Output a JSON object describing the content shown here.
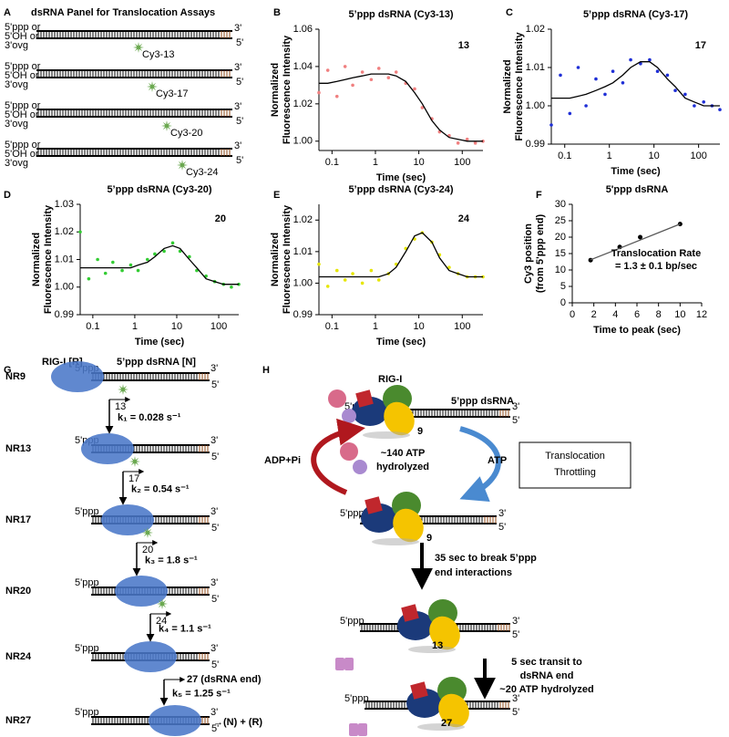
{
  "panel_labels": [
    "A",
    "B",
    "C",
    "D",
    "E",
    "F",
    "G",
    "H"
  ],
  "chart_data": [
    {
      "type": "scatter",
      "title": "5’ppp dsRNA (Cy3-13)",
      "annotation": [
        "13"
      ],
      "xlabel": "Time (sec)",
      "ylabel": [
        "Normalized",
        "Fluorescence Intensity"
      ],
      "xscale": "log",
      "xlim": [
        0.05,
        300
      ],
      "xticks": [
        0.1,
        1,
        10,
        100
      ],
      "ylim": [
        0.995,
        1.06
      ],
      "yticks": [
        {
          "value": 1,
          "label": "1.00"
        },
        {
          "value": 1.02,
          "label": "1.02"
        },
        {
          "value": 1.04,
          "label": "1.04"
        },
        {
          "value": 1.06,
          "label": "1.06"
        }
      ],
      "x": [
        0.05,
        0.08,
        0.13,
        0.2,
        0.3,
        0.5,
        0.8,
        1.2,
        2,
        3,
        5,
        8,
        12,
        20,
        30,
        50,
        80,
        130,
        200,
        300
      ],
      "series": [
        {
          "mode": "markers",
          "color": "#f08080",
          "values": [
            1.026,
            1.038,
            1.024,
            1.04,
            1.03,
            1.037,
            1.033,
            1.039,
            1.034,
            1.037,
            1.031,
            1.028,
            1.018,
            1.012,
            1.005,
            1.003,
            0.999,
            1.001,
            0.999,
            1.0
          ]
        },
        {
          "mode": "line",
          "color": "#000000",
          "values": [
            1.031,
            1.031,
            1.032,
            1.033,
            1.034,
            1.035,
            1.036,
            1.036,
            1.036,
            1.035,
            1.032,
            1.026,
            1.02,
            1.011,
            1.006,
            1.002,
            1.001,
            1.0,
            1.0,
            1.0
          ]
        }
      ]
    },
    {
      "type": "scatter",
      "title": "5’ppp dsRNA (Cy3-17)",
      "annotation": [
        "17"
      ],
      "xlabel": "Time (sec)",
      "ylabel": [
        "Normalized",
        "Fluorescence Intensity"
      ],
      "xscale": "log",
      "xlim": [
        0.05,
        300
      ],
      "xticks": [
        0.1,
        1,
        10,
        100
      ],
      "ylim": [
        0.99,
        1.02
      ],
      "yticks": [
        0.99,
        {
          "value": 1,
          "label": "1.00"
        },
        1.01,
        1.02
      ],
      "x": [
        0.05,
        0.08,
        0.13,
        0.2,
        0.3,
        0.5,
        0.8,
        1.2,
        2,
        3,
        5,
        8,
        12,
        20,
        30,
        50,
        80,
        130,
        200,
        300
      ],
      "series": [
        {
          "mode": "markers",
          "color": "#1f2fd6",
          "values": [
            0.995,
            1.008,
            0.998,
            1.01,
            1.0,
            1.007,
            1.003,
            1.009,
            1.006,
            1.012,
            1.011,
            1.012,
            1.009,
            1.008,
            1.004,
            1.003,
            1.0,
            1.001,
            1.0,
            0.999
          ]
        },
        {
          "mode": "line",
          "color": "#000000",
          "values": [
            1.002,
            1.002,
            1.002,
            1.0025,
            1.003,
            1.004,
            1.005,
            1.006,
            1.008,
            1.01,
            1.0115,
            1.0115,
            1.01,
            1.007,
            1.005,
            1.002,
            1.001,
            1.0,
            1.0,
            1.0
          ]
        }
      ]
    },
    {
      "type": "scatter",
      "title": "5’ppp dsRNA (Cy3-20)",
      "annotation": [
        "20"
      ],
      "xlabel": "Time (sec)",
      "ylabel": [
        "Normalized",
        "Fluorescence Intensity"
      ],
      "xscale": "log",
      "xlim": [
        0.05,
        300
      ],
      "xticks": [
        0.1,
        1,
        10,
        100
      ],
      "ylim": [
        0.99,
        1.03
      ],
      "yticks": [
        0.99,
        {
          "value": 1,
          "label": "1.00"
        },
        1.01,
        1.02,
        1.03
      ],
      "x": [
        0.05,
        0.08,
        0.13,
        0.2,
        0.3,
        0.5,
        0.8,
        1.2,
        2,
        3,
        5,
        8,
        12,
        20,
        30,
        50,
        80,
        130,
        200,
        300
      ],
      "series": [
        {
          "mode": "markers",
          "color": "#33cc33",
          "values": [
            1.02,
            1.003,
            1.01,
            1.005,
            1.009,
            1.006,
            1.008,
            1.006,
            1.01,
            1.012,
            1.013,
            1.016,
            1.013,
            1.011,
            1.006,
            1.004,
            1.002,
            1.001,
            1.0,
            1.001
          ]
        },
        {
          "mode": "line",
          "color": "#000000",
          "values": [
            1.007,
            1.007,
            1.007,
            1.007,
            1.007,
            1.007,
            1.007,
            1.008,
            1.009,
            1.011,
            1.014,
            1.015,
            1.014,
            1.01,
            1.007,
            1.003,
            1.002,
            1.001,
            1.001,
            1.001
          ]
        }
      ]
    },
    {
      "type": "scatter",
      "title": "5’ppp dsRNA (Cy3-24)",
      "annotation": [
        "24"
      ],
      "xlabel": "Time (sec)",
      "ylabel": [
        "Normalized",
        "Fluorescence Intensity"
      ],
      "xscale": "log",
      "xlim": [
        0.05,
        300
      ],
      "xticks": [
        0.1,
        1,
        10,
        100
      ],
      "ylim": [
        0.99,
        1.025
      ],
      "yticks": [
        0.99,
        {
          "value": 1,
          "label": "1.00"
        },
        1.01,
        1.02
      ],
      "x": [
        0.05,
        0.08,
        0.13,
        0.2,
        0.3,
        0.5,
        0.8,
        1.2,
        2,
        3,
        5,
        8,
        12,
        20,
        30,
        50,
        80,
        130,
        200,
        300
      ],
      "series": [
        {
          "mode": "markers",
          "color": "#e6e600",
          "values": [
            1.006,
            0.999,
            1.004,
            1.001,
            1.003,
            1.0,
            1.004,
            1.001,
            1.003,
            1.006,
            1.011,
            1.014,
            1.016,
            1.013,
            1.009,
            1.005,
            1.003,
            1.002,
            1.002,
            1.002
          ]
        },
        {
          "mode": "line",
          "color": "#000000",
          "values": [
            1.002,
            1.002,
            1.002,
            1.002,
            1.002,
            1.002,
            1.002,
            1.002,
            1.003,
            1.005,
            1.01,
            1.015,
            1.016,
            1.013,
            1.008,
            1.004,
            1.003,
            1.002,
            1.002,
            1.002
          ]
        }
      ]
    },
    {
      "type": "scatter",
      "title": "5'ppp dsRNA",
      "annotation": [
        "Translocation Rate",
        "= 1.3 ± 0.1 bp/sec"
      ],
      "xlabel": "Time to peak (sec)",
      "ylabel": [
        "Cy3 position",
        "(from 5'ppp end)"
      ],
      "xscale": "linear",
      "xlim": [
        0,
        12
      ],
      "xticks": [
        0,
        2,
        4,
        6,
        8,
        10,
        12
      ],
      "ylim": [
        0,
        30
      ],
      "yticks": [
        0,
        5,
        10,
        15,
        20,
        25,
        30
      ],
      "x": [
        1.7,
        4.4,
        6.3,
        10
      ],
      "series": [
        {
          "mode": "markers",
          "color": "#000000",
          "values": [
            13,
            17,
            20,
            24
          ]
        },
        {
          "mode": "line",
          "color": "#555555",
          "values": [
            13.1,
            16.6,
            19.1,
            24.0
          ]
        }
      ]
    }
  ],
  "panel_a": {
    "title": "dsRNA Panel for Translocation Assays",
    "rows": [
      {
        "end_label": [
          "5'ppp or",
          "5'OH or",
          "3'ovg"
        ],
        "top_end": "3'",
        "bottom_end": "5'",
        "dye": "Cy3-13"
      },
      {
        "end_label": [
          "5'ppp or",
          "5'OH or",
          "3'ovg"
        ],
        "top_end": "3'",
        "bottom_end": "5'",
        "dye": "Cy3-17"
      },
      {
        "end_label": [
          "5'ppp or",
          "5'OH or",
          "3'ovg"
        ],
        "top_end": "3'",
        "bottom_end": "5'",
        "dye": "Cy3-20"
      },
      {
        "end_label": [
          "5'ppp or",
          "5'OH or",
          "3'ovg"
        ],
        "top_end": "3'",
        "bottom_end": "5'",
        "dye": "Cy3-24"
      }
    ]
  },
  "strand_ends": {
    "five_ppp": "5'ppp",
    "three": "3'",
    "five": "5'"
  },
  "panel_g": {
    "protein_label": "RIG-I [R]",
    "rna_label": "5’ppp dsRNA  [N]",
    "states": [
      {
        "name": "NR9",
        "position": "13"
      },
      {
        "name": "NR13",
        "position": "17"
      },
      {
        "name": "NR17",
        "position": "20"
      },
      {
        "name": "NR20",
        "position": "24"
      },
      {
        "name": "NR24",
        "position": "27 (dsRNA end)"
      },
      {
        "name": "NR27"
      }
    ],
    "rates": [
      "k₁ = 0.028 s⁻¹",
      "k₂ = 0.54 s⁻¹",
      "k₃ = 1.8 s⁻¹",
      "k₄ = 1.1 s⁻¹",
      "k₅ = 1.25 s⁻¹"
    ],
    "products": "→(N) + (R)"
  },
  "panel_h": {
    "protein_label": "RIG-I",
    "rna_label": "5’ppp dsRNA",
    "complexes": [
      "9",
      "9",
      "13",
      "27"
    ],
    "atp_hydrolyzed": [
      "~140 ATP",
      "hydrolyzed"
    ],
    "adp": "ADP+Pi",
    "atp": "ATP",
    "throttling": [
      "Translocation",
      "Throttling"
    ],
    "step1": [
      "35 sec to break 5’ppp",
      "end interactions"
    ],
    "step2": [
      "5 sec transit to",
      "dsRNA end",
      "~20 ATP hydrolyzed"
    ]
  }
}
